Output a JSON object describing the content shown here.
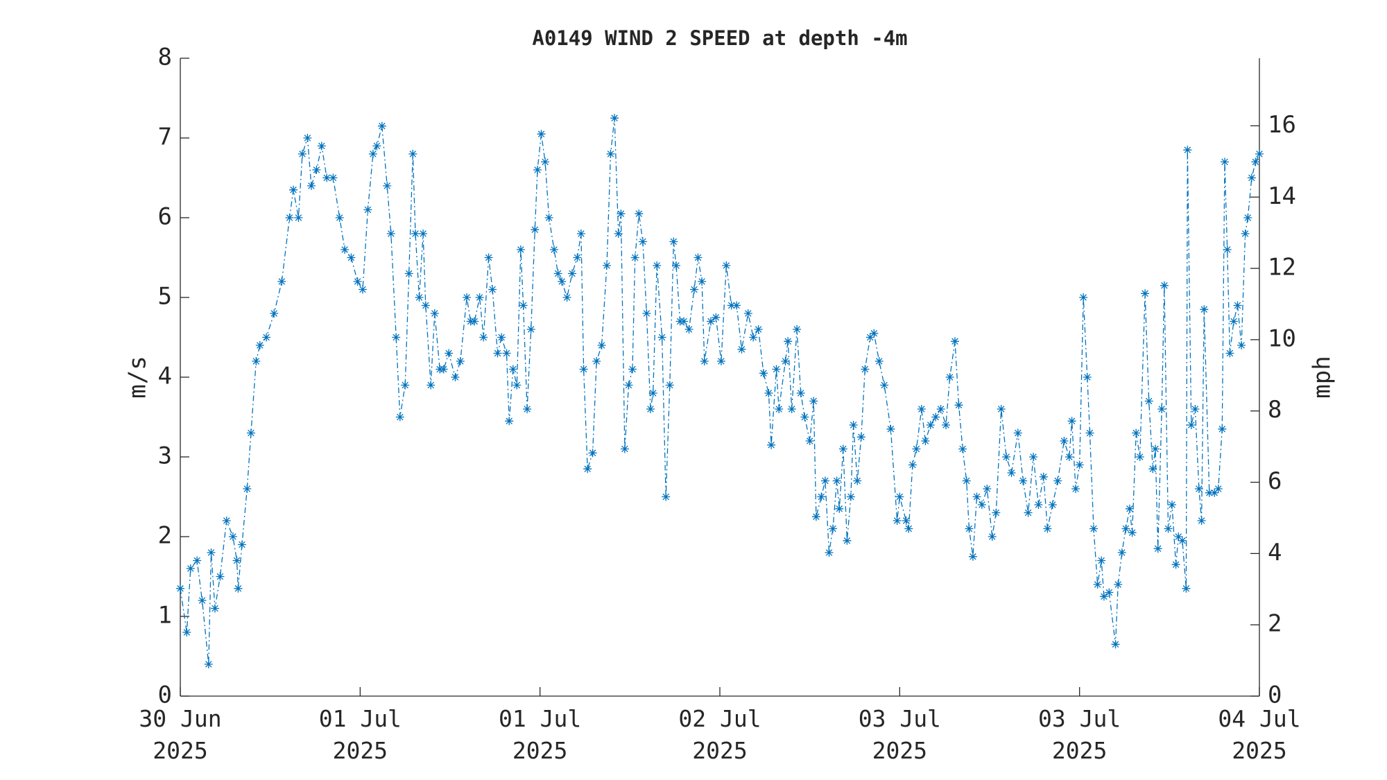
{
  "chart_data": {
    "type": "line",
    "title": "A0149 WIND 2 SPEED at depth -4m",
    "ylabel": "m/s",
    "y2label": "mph",
    "xlim": [
      0,
      84
    ],
    "xticks": [
      {
        "value": 0,
        "label": "30 Jun\n2025"
      },
      {
        "value": 14,
        "label": "01 Jul\n2025"
      },
      {
        "value": 28,
        "label": "01 Jul\n2025"
      },
      {
        "value": 42,
        "label": "02 Jul\n2025"
      },
      {
        "value": 56,
        "label": "03 Jul\n2025"
      },
      {
        "value": 70,
        "label": "03 Jul\n2025"
      },
      {
        "value": 84,
        "label": "04 Jul\n2025"
      }
    ],
    "ylim": [
      0,
      8
    ],
    "yticks": [
      0,
      1,
      2,
      3,
      4,
      5,
      6,
      7,
      8
    ],
    "y2lim": [
      0,
      17.8955
    ],
    "y2ticks": [
      0,
      2,
      4,
      6,
      8,
      10,
      12,
      14,
      16
    ],
    "series": [
      {
        "color": "#0072bd",
        "x": [
          0,
          0.5,
          0.8,
          1.3,
          1.7,
          2.2,
          2.4,
          2.7,
          3.1,
          3.6,
          4.1,
          4.4,
          4.5,
          4.8,
          5.2,
          5.5,
          5.9,
          6.2,
          6.7,
          7.3,
          7.9,
          8.5,
          8.8,
          9.2,
          9.5,
          9.9,
          10.2,
          10.6,
          11.0,
          11.4,
          11.9,
          12.4,
          12.8,
          13.3,
          13.8,
          14.2,
          14.6,
          15.0,
          15.3,
          15.7,
          16.1,
          16.4,
          16.8,
          17.1,
          17.5,
          17.8,
          18.1,
          18.3,
          18.6,
          18.9,
          19.1,
          19.5,
          19.8,
          20.2,
          20.5,
          20.9,
          21.4,
          21.8,
          22.3,
          22.6,
          22.9,
          23.3,
          23.6,
          24.0,
          24.3,
          24.7,
          25.0,
          25.4,
          25.6,
          25.9,
          26.2,
          26.5,
          26.7,
          27.0,
          27.3,
          27.6,
          27.8,
          28.1,
          28.4,
          28.7,
          29.1,
          29.4,
          29.7,
          30.1,
          30.5,
          30.9,
          31.2,
          31.4,
          31.7,
          32.1,
          32.4,
          32.8,
          33.2,
          33.5,
          33.8,
          34.1,
          34.3,
          34.6,
          34.9,
          35.2,
          35.4,
          35.7,
          36.0,
          36.3,
          36.6,
          36.8,
          37.1,
          37.5,
          37.8,
          38.1,
          38.4,
          38.6,
          38.9,
          39.2,
          39.6,
          40.0,
          40.3,
          40.6,
          40.8,
          41.3,
          41.7,
          42.1,
          42.5,
          42.9,
          43.3,
          43.7,
          44.2,
          44.6,
          45.0,
          45.4,
          45.8,
          46.0,
          46.4,
          46.6,
          47.1,
          47.3,
          47.6,
          48.0,
          48.3,
          48.6,
          49.0,
          49.3,
          49.5,
          49.9,
          50.2,
          50.5,
          50.8,
          51.1,
          51.3,
          51.6,
          51.9,
          52.2,
          52.4,
          52.7,
          53.0,
          53.3,
          53.7,
          54.0,
          54.4,
          54.8,
          55.3,
          55.8,
          56.0,
          56.5,
          56.7,
          57.0,
          57.3,
          57.7,
          58.0,
          58.4,
          58.8,
          59.2,
          59.6,
          59.9,
          60.3,
          60.6,
          60.9,
          61.2,
          61.4,
          61.7,
          62.0,
          62.4,
          62.8,
          63.2,
          63.5,
          63.9,
          64.3,
          64.7,
          65.2,
          65.6,
          66.0,
          66.4,
          66.8,
          67.2,
          67.5,
          67.9,
          68.3,
          68.8,
          69.2,
          69.4,
          69.7,
          70.0,
          70.3,
          70.6,
          70.8,
          71.1,
          71.4,
          71.7,
          71.9,
          72.3,
          72.8,
          73.0,
          73.3,
          73.6,
          73.9,
          74.1,
          74.4,
          74.7,
          75.1,
          75.4,
          75.7,
          75.9,
          76.1,
          76.4,
          76.6,
          76.9,
          77.2,
          77.5,
          77.7,
          78.0,
          78.3,
          78.4,
          78.7,
          79.0,
          79.3,
          79.5,
          79.7,
          80.1,
          80.5,
          80.8,
          81.1,
          81.3,
          81.5,
          81.7,
          82.0,
          82.3,
          82.6,
          82.9,
          83.1,
          83.4,
          83.7,
          84.0
        ],
        "values": [
          1.35,
          0.8,
          1.6,
          1.7,
          1.2,
          0.4,
          1.8,
          1.1,
          1.5,
          2.2,
          2.0,
          1.7,
          1.35,
          1.9,
          2.6,
          3.3,
          4.2,
          4.4,
          4.5,
          4.8,
          5.2,
          6.0,
          6.35,
          6.0,
          6.8,
          7.0,
          6.4,
          6.6,
          6.9,
          6.5,
          6.5,
          6.0,
          5.6,
          5.5,
          5.2,
          5.1,
          6.1,
          6.8,
          6.9,
          7.15,
          6.4,
          5.8,
          4.5,
          3.5,
          3.9,
          5.3,
          6.8,
          5.8,
          5.0,
          5.8,
          4.9,
          3.9,
          4.8,
          4.1,
          4.1,
          4.3,
          4.0,
          4.2,
          5.0,
          4.7,
          4.7,
          5.0,
          4.5,
          5.5,
          5.1,
          4.3,
          4.5,
          4.3,
          3.45,
          4.1,
          3.9,
          5.6,
          4.9,
          3.6,
          4.6,
          5.85,
          6.6,
          7.05,
          6.7,
          6.0,
          5.6,
          5.3,
          5.2,
          5.0,
          5.3,
          5.5,
          5.8,
          4.1,
          2.85,
          3.05,
          4.2,
          4.4,
          5.4,
          6.8,
          7.25,
          5.8,
          6.05,
          3.1,
          3.9,
          4.1,
          5.5,
          6.05,
          5.7,
          4.8,
          3.6,
          3.8,
          5.4,
          4.5,
          2.5,
          3.9,
          5.7,
          5.4,
          4.7,
          4.7,
          4.6,
          5.1,
          5.5,
          5.2,
          4.2,
          4.7,
          4.75,
          4.2,
          5.4,
          4.9,
          4.9,
          4.35,
          4.8,
          4.5,
          4.6,
          4.05,
          3.8,
          3.15,
          4.1,
          3.6,
          4.2,
          4.45,
          3.6,
          4.6,
          3.8,
          3.5,
          3.2,
          3.7,
          2.25,
          2.5,
          2.7,
          1.8,
          2.1,
          2.7,
          2.35,
          3.1,
          1.95,
          2.5,
          3.4,
          2.7,
          3.25,
          4.1,
          4.5,
          4.55,
          4.2,
          3.9,
          3.35,
          2.2,
          2.5,
          2.2,
          2.1,
          2.9,
          3.1,
          3.6,
          3.2,
          3.4,
          3.5,
          3.6,
          3.4,
          4.0,
          4.45,
          3.65,
          3.1,
          2.7,
          2.1,
          1.75,
          2.5,
          2.4,
          2.6,
          2.0,
          2.3,
          3.6,
          3.0,
          2.8,
          3.3,
          2.7,
          2.3,
          3.0,
          2.4,
          2.75,
          2.1,
          2.4,
          2.7,
          3.2,
          3.0,
          3.45,
          2.6,
          2.9,
          5.0,
          4.0,
          3.3,
          2.1,
          1.4,
          1.7,
          1.25,
          1.3,
          0.65,
          1.4,
          1.8,
          2.1,
          2.35,
          2.05,
          3.3,
          3.0,
          5.05,
          3.7,
          2.85,
          3.1,
          1.85,
          3.6,
          5.15,
          2.1,
          2.4,
          1.65,
          2.0,
          1.95,
          1.35,
          6.85,
          3.4,
          3.6,
          2.6,
          2.2,
          4.85,
          2.55,
          2.55,
          2.6,
          3.35,
          6.7,
          5.6,
          4.3,
          4.7,
          4.9,
          4.4,
          5.8,
          6.0,
          6.5,
          6.7,
          6.8
        ]
      }
    ]
  }
}
